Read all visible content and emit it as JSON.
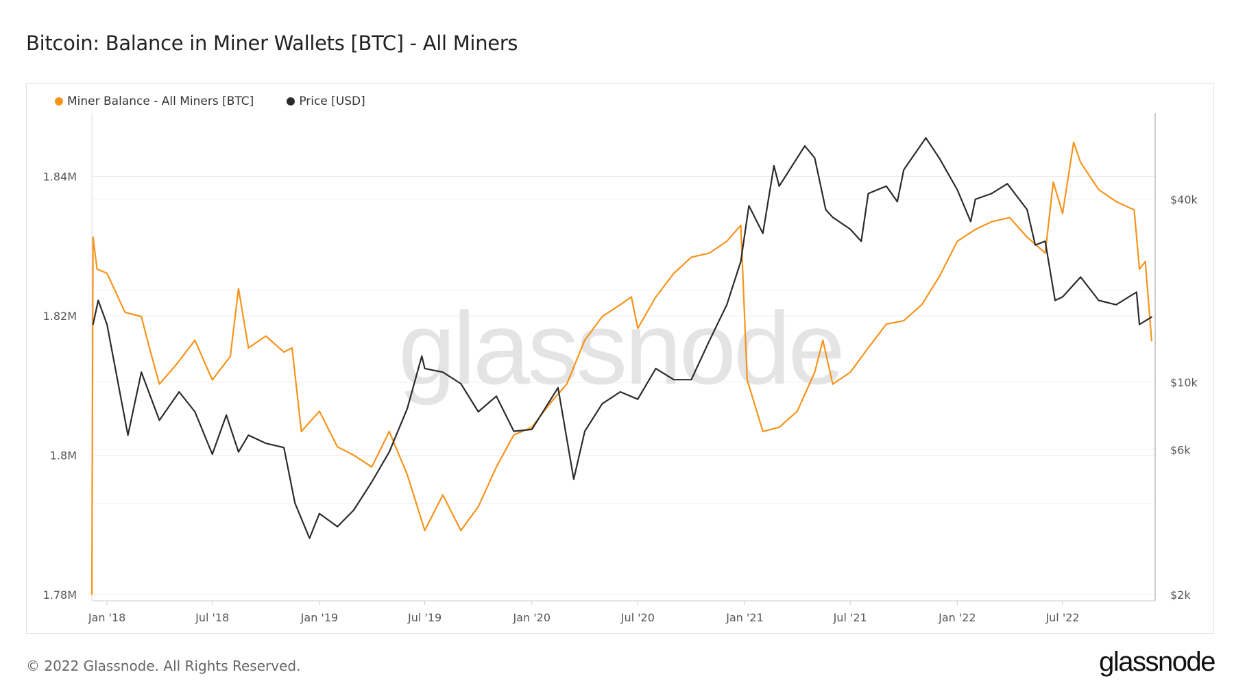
{
  "title": "Bitcoin: Balance in Miner Wallets [BTC] - All Miners",
  "footer": "© 2022 Glassnode. All Rights Reserved.",
  "logo_text": "glassnode",
  "watermark": "glassnode",
  "chart_data": {
    "type": "line",
    "title": "Bitcoin: Balance in Miner Wallets [BTC] - All Miners",
    "x_range": [
      "2017-12-06",
      "2022-12-07"
    ],
    "x_ticks": [
      {
        "date": "2018-01-01",
        "label": "Jan '18"
      },
      {
        "date": "2018-07-01",
        "label": "Jul '18"
      },
      {
        "date": "2019-01-01",
        "label": "Jan '19"
      },
      {
        "date": "2019-07-01",
        "label": "Jul '19"
      },
      {
        "date": "2020-01-01",
        "label": "Jan '20"
      },
      {
        "date": "2020-07-01",
        "label": "Jul '20"
      },
      {
        "date": "2021-01-01",
        "label": "Jan '21"
      },
      {
        "date": "2021-07-01",
        "label": "Jul '21"
      },
      {
        "date": "2022-01-01",
        "label": "Jan '22"
      },
      {
        "date": "2022-07-01",
        "label": "Jul '22"
      }
    ],
    "y_left": {
      "scale": "linear",
      "range": [
        1.7791,
        1.8491
      ],
      "ticks": [
        {
          "value": 1.84,
          "label": "1.84M"
        },
        {
          "value": 1.82,
          "label": "1.82M"
        },
        {
          "value": 1.8,
          "label": "1.8M"
        },
        {
          "value": 1.78,
          "label": "1.78M"
        }
      ]
    },
    "y_right": {
      "scale": "log",
      "range": [
        1910,
        76900
      ],
      "ticks": [
        {
          "value": 40000,
          "label": "$40k"
        },
        {
          "value": 10000,
          "label": "$10k"
        },
        {
          "value": 6000,
          "label": "$6k"
        },
        {
          "value": 2000,
          "label": "$2k"
        }
      ]
    },
    "grid": true,
    "legend_position": "top-left",
    "series": [
      {
        "name": "Miner Balance - All Miners [BTC]",
        "axis": "left",
        "color": "#f7931a",
        "points": [
          [
            "2017-12-06",
            1.78
          ],
          [
            "2017-12-08",
            1.8313
          ],
          [
            "2017-12-15",
            1.8267
          ],
          [
            "2018-01-01",
            1.8261
          ],
          [
            "2018-02-01",
            1.8205
          ],
          [
            "2018-03-01",
            1.8199
          ],
          [
            "2018-03-15",
            1.8154
          ],
          [
            "2018-04-01",
            1.8102
          ],
          [
            "2018-05-01",
            1.8131
          ],
          [
            "2018-06-01",
            1.8165
          ],
          [
            "2018-07-01",
            1.8108
          ],
          [
            "2018-08-01",
            1.8142
          ],
          [
            "2018-08-15",
            1.8239
          ],
          [
            "2018-09-01",
            1.8154
          ],
          [
            "2018-10-01",
            1.8171
          ],
          [
            "2018-11-01",
            1.8148
          ],
          [
            "2018-11-15",
            1.8154
          ],
          [
            "2018-12-01",
            1.8034
          ],
          [
            "2019-01-01",
            1.8063
          ],
          [
            "2019-02-01",
            1.8012
          ],
          [
            "2019-03-01",
            1.8
          ],
          [
            "2019-04-01",
            1.7983
          ],
          [
            "2019-05-01",
            1.8034
          ],
          [
            "2019-06-01",
            1.7972
          ],
          [
            "2019-07-01",
            1.7892
          ],
          [
            "2019-08-01",
            1.7943
          ],
          [
            "2019-09-01",
            1.7892
          ],
          [
            "2019-10-01",
            1.7926
          ],
          [
            "2019-11-01",
            1.7983
          ],
          [
            "2019-12-01",
            1.8029
          ],
          [
            "2020-01-01",
            1.804
          ],
          [
            "2020-02-01",
            1.8074
          ],
          [
            "2020-03-01",
            1.8102
          ],
          [
            "2020-04-01",
            1.8165
          ],
          [
            "2020-05-01",
            1.8199
          ],
          [
            "2020-06-01",
            1.8216
          ],
          [
            "2020-06-20",
            1.8227
          ],
          [
            "2020-07-01",
            1.8182
          ],
          [
            "2020-08-01",
            1.8227
          ],
          [
            "2020-09-01",
            1.8261
          ],
          [
            "2020-10-01",
            1.8284
          ],
          [
            "2020-11-01",
            1.829
          ],
          [
            "2020-12-01",
            1.8307
          ],
          [
            "2020-12-25",
            1.833
          ],
          [
            "2021-01-05",
            1.8108
          ],
          [
            "2021-02-01",
            1.8034
          ],
          [
            "2021-03-01",
            1.804
          ],
          [
            "2021-04-01",
            1.8063
          ],
          [
            "2021-05-01",
            1.8119
          ],
          [
            "2021-05-15",
            1.8165
          ],
          [
            "2021-06-01",
            1.8102
          ],
          [
            "2021-07-01",
            1.8119
          ],
          [
            "2021-08-01",
            1.8154
          ],
          [
            "2021-09-01",
            1.8188
          ],
          [
            "2021-10-01",
            1.8193
          ],
          [
            "2021-11-01",
            1.8216
          ],
          [
            "2021-12-01",
            1.8256
          ],
          [
            "2022-01-01",
            1.8307
          ],
          [
            "2022-02-01",
            1.8324
          ],
          [
            "2022-03-01",
            1.8335
          ],
          [
            "2022-04-01",
            1.8341
          ],
          [
            "2022-05-01",
            1.8313
          ],
          [
            "2022-06-01",
            1.829
          ],
          [
            "2022-06-15",
            1.8392
          ],
          [
            "2022-07-01",
            1.8347
          ],
          [
            "2022-07-20",
            1.8449
          ],
          [
            "2022-08-01",
            1.842
          ],
          [
            "2022-09-01",
            1.8381
          ],
          [
            "2022-10-01",
            1.8364
          ],
          [
            "2022-11-01",
            1.8352
          ],
          [
            "2022-11-10",
            1.8267
          ],
          [
            "2022-11-20",
            1.8278
          ],
          [
            "2022-12-01",
            1.8164
          ]
        ]
      },
      {
        "name": "Price [USD]",
        "axis": "right",
        "color": "#2b2b2b",
        "points": [
          [
            "2017-12-08",
            15500
          ],
          [
            "2017-12-17",
            18600
          ],
          [
            "2018-01-01",
            15500
          ],
          [
            "2018-02-06",
            6700
          ],
          [
            "2018-03-01",
            10800
          ],
          [
            "2018-04-01",
            7500
          ],
          [
            "2018-05-05",
            9300
          ],
          [
            "2018-06-01",
            8000
          ],
          [
            "2018-07-01",
            5800
          ],
          [
            "2018-07-25",
            7800
          ],
          [
            "2018-08-15",
            5900
          ],
          [
            "2018-09-01",
            6700
          ],
          [
            "2018-10-01",
            6300
          ],
          [
            "2018-11-01",
            6100
          ],
          [
            "2018-11-20",
            4000
          ],
          [
            "2018-12-15",
            3070
          ],
          [
            "2019-01-01",
            3700
          ],
          [
            "2019-02-01",
            3350
          ],
          [
            "2019-03-01",
            3800
          ],
          [
            "2019-04-01",
            4700
          ],
          [
            "2019-05-01",
            5900
          ],
          [
            "2019-06-01",
            8200
          ],
          [
            "2019-06-26",
            12200
          ],
          [
            "2019-07-01",
            11100
          ],
          [
            "2019-08-01",
            10800
          ],
          [
            "2019-09-01",
            9900
          ],
          [
            "2019-10-01",
            8000
          ],
          [
            "2019-11-01",
            9000
          ],
          [
            "2019-12-01",
            6900
          ],
          [
            "2020-01-01",
            7000
          ],
          [
            "2020-02-15",
            9600
          ],
          [
            "2020-03-13",
            4800
          ],
          [
            "2020-04-01",
            6900
          ],
          [
            "2020-05-01",
            8500
          ],
          [
            "2020-06-01",
            9300
          ],
          [
            "2020-07-01",
            8800
          ],
          [
            "2020-08-01",
            11100
          ],
          [
            "2020-09-01",
            10200
          ],
          [
            "2020-10-01",
            10200
          ],
          [
            "2020-11-01",
            13700
          ],
          [
            "2020-12-01",
            18000
          ],
          [
            "2020-12-25",
            25000
          ],
          [
            "2021-01-08",
            38100
          ],
          [
            "2021-02-01",
            30900
          ],
          [
            "2021-02-20",
            51600
          ],
          [
            "2021-03-01",
            44200
          ],
          [
            "2021-04-14",
            59900
          ],
          [
            "2021-05-01",
            54700
          ],
          [
            "2021-05-20",
            37000
          ],
          [
            "2021-06-01",
            34900
          ],
          [
            "2021-07-01",
            31900
          ],
          [
            "2021-07-20",
            29100
          ],
          [
            "2021-08-01",
            41800
          ],
          [
            "2021-09-01",
            44200
          ],
          [
            "2021-09-20",
            39300
          ],
          [
            "2021-10-01",
            50000
          ],
          [
            "2021-11-08",
            63700
          ],
          [
            "2021-12-01",
            54700
          ],
          [
            "2022-01-01",
            43000
          ],
          [
            "2022-01-24",
            33800
          ],
          [
            "2022-02-01",
            40000
          ],
          [
            "2022-03-01",
            41800
          ],
          [
            "2022-03-28",
            45000
          ],
          [
            "2022-05-01",
            37000
          ],
          [
            "2022-05-15",
            28300
          ],
          [
            "2022-06-01",
            29100
          ],
          [
            "2022-06-18",
            18600
          ],
          [
            "2022-07-01",
            19100
          ],
          [
            "2022-08-01",
            22200
          ],
          [
            "2022-09-01",
            18600
          ],
          [
            "2022-10-01",
            18000
          ],
          [
            "2022-11-05",
            19800
          ],
          [
            "2022-11-10",
            15500
          ],
          [
            "2022-12-01",
            16400
          ]
        ]
      }
    ]
  }
}
